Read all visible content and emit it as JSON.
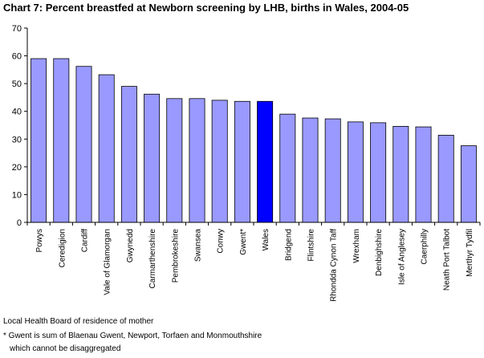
{
  "title": "Chart 7: Percent breastfed at Newborn screening by LHB, births in Wales, 2004-05",
  "footnotes": [
    "Local Health Board of residence of mother",
    "* Gwent is sum of Blaenau Gwent, Newport, Torfaen and Monmouthshire",
    "which cannot be disaggregated"
  ],
  "colors": {
    "bar": "#9999FF",
    "highlight": "#0000FF",
    "border": "#000000"
  },
  "chart_data": {
    "type": "bar",
    "title": "Chart 7: Percent breastfed at Newborn screening by LHB, births in Wales, 2004-05",
    "xlabel": "",
    "ylabel": "",
    "ylim": [
      0,
      70
    ],
    "yticks": [
      0,
      10,
      20,
      30,
      40,
      50,
      60,
      70
    ],
    "grid": false,
    "legend": "none",
    "highlight_category": "Wales",
    "categories": [
      "Powys",
      "Ceredigion",
      "Cardiff",
      "Vale of Glamorgan",
      "Gwynedd",
      "Carmarthenshire",
      "Pembrokeshire",
      "Swansea",
      "Conwy",
      "Gwent*",
      "Wales",
      "Bridgend",
      "Flintshire",
      "Rhondda Cynon Taff",
      "Wrexham",
      "Denbighshire",
      "Isle of Anglesey",
      "Caerphilly",
      "Neath Port Talbot",
      "Merthyr Tydfil"
    ],
    "values": [
      59.0,
      59.0,
      56.2,
      53.2,
      49.0,
      46.2,
      44.6,
      44.6,
      44.0,
      43.6,
      43.6,
      39.0,
      37.6,
      37.3,
      36.2,
      35.9,
      34.6,
      34.4,
      31.4,
      27.6
    ]
  }
}
